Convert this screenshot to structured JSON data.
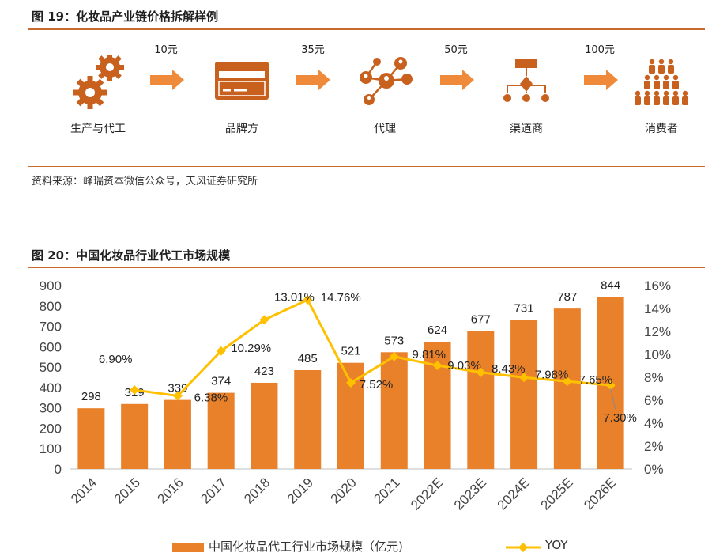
{
  "figure19": {
    "title": "图 19：化妆品产业链价格拆解样例",
    "steps": [
      {
        "label": "生产与代工",
        "icon": "gears-icon"
      },
      {
        "label": "品牌方",
        "icon": "card-icon"
      },
      {
        "label": "代理",
        "icon": "network-icon"
      },
      {
        "label": "渠道商",
        "icon": "hierarchy-icon"
      },
      {
        "label": "消费者",
        "icon": "crowd-icon"
      }
    ],
    "prices": [
      "10元",
      "35元",
      "50元",
      "100元"
    ],
    "source": "资料来源：峰瑞资本微信公众号，天风证券研究所"
  },
  "figure20": {
    "title": "图 20：中国化妆品行业代工市场规模"
  },
  "colors": {
    "accent": "#e9812a",
    "yoy": "#ffc000",
    "rule": "#c8692e"
  },
  "chart_data": {
    "type": "bar",
    "title": "图 20：中国化妆品行业代工市场规模",
    "categories": [
      "2014",
      "2015",
      "2016",
      "2017",
      "2018",
      "2019",
      "2020",
      "2021",
      "2022E",
      "2023E",
      "2024E",
      "2025E",
      "2026E"
    ],
    "series": [
      {
        "name": "中国化妆品代工行业市场规模（亿元)",
        "type": "bar",
        "axis": "left",
        "values": [
          298,
          319,
          339,
          374,
          423,
          485,
          521,
          573,
          624,
          677,
          731,
          787,
          844
        ],
        "labels": [
          "298",
          "319",
          "339",
          "374",
          "423",
          "485",
          "521",
          "573",
          "624",
          "677",
          "731",
          "787",
          "844"
        ]
      },
      {
        "name": "YOY",
        "type": "line",
        "axis": "right",
        "values": [
          null,
          6.9,
          6.38,
          10.29,
          13.01,
          14.76,
          7.52,
          9.81,
          9.03,
          8.43,
          7.98,
          7.65,
          7.3
        ],
        "labels": [
          "",
          "6.90%",
          "6.38%",
          "10.29%",
          "13.01%",
          "14.76%",
          "7.52%",
          "9.81%",
          "9.03%",
          "8.43%",
          "7.98%",
          "7.65%",
          "7.30%"
        ]
      }
    ],
    "left_axis": {
      "min": 0,
      "max": 900,
      "step": 100,
      "ticks": [
        "0",
        "100",
        "200",
        "300",
        "400",
        "500",
        "600",
        "700",
        "800",
        "900"
      ]
    },
    "right_axis": {
      "min": 0,
      "max": 16,
      "step": 2,
      "ticks": [
        "0%",
        "2%",
        "4%",
        "6%",
        "8%",
        "10%",
        "12%",
        "14%",
        "16%"
      ]
    },
    "legend": [
      "中国化妆品代工行业市场规模（亿元)",
      "YOY"
    ],
    "legend_position": "bottom",
    "grid": false
  }
}
